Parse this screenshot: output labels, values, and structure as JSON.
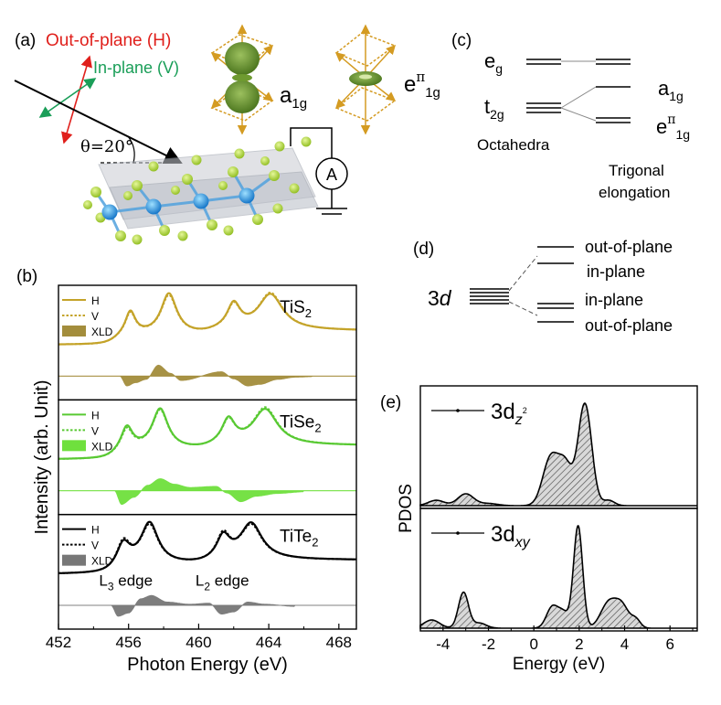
{
  "panel_labels": {
    "a": "(a)",
    "b": "(b)",
    "c": "(c)",
    "d": "(d)",
    "e": "(e)"
  },
  "panel_a": {
    "out_of_plane": "Out-of-plane (H)",
    "in_plane": "In-plane (V)",
    "theta": "θ=20°",
    "meter": "A",
    "orbital1_main": "a",
    "orbital1_sub": "1g",
    "orbital2_main": "e",
    "orbital2_sup": "π",
    "orbital2_sub": "1g",
    "colors": {
      "h": "#e0201c",
      "v": "#1a9e58",
      "orbital": "#5b7f2a",
      "axes": "#d49b22",
      "ligand": "#9fcc1f",
      "metal": "#1f8be0"
    }
  },
  "panel_c": {
    "eg_main": "e",
    "eg_sub": "g",
    "t2g_main": "t",
    "t2g_sub": "2g",
    "a1g_main": "a",
    "a1g_sub": "1g",
    "epi_main": "e",
    "epi_sup": "π",
    "epi_sub": "1g",
    "octahedra": "Octahedra",
    "trigonal_1": "Trigonal",
    "trigonal_2": "elongation"
  },
  "panel_d": {
    "level_main": "3",
    "level_italic": "d",
    "labels": [
      "out-of-plane",
      "in-plane",
      "in-plane",
      "out-of-plane"
    ]
  },
  "chart_data": [
    {
      "id": "xas",
      "type": "line",
      "xlabel": "Photon Energy (eV)",
      "ylabel": "Intensity (arb. Unit)",
      "xlim": [
        452,
        469
      ],
      "xticks": [
        452,
        456,
        460,
        464,
        468
      ],
      "edge_labels": [
        {
          "main": "L",
          "sub": "3",
          "rest": " edge",
          "x": 456.4
        },
        {
          "main": "L",
          "sub": "2",
          "rest": " edge",
          "x": 461.9
        }
      ],
      "panels": [
        {
          "name": "TiS",
          "sub": "2",
          "color": "#c4a329",
          "xld_color": "#a38d3c",
          "legend": [
            "H",
            "V",
            "XLD"
          ],
          "peaks": [
            {
              "x": 456.1,
              "h_amp": 0.55,
              "v_amp": 0.52,
              "w": 0.35
            },
            {
              "x": 458.3,
              "h_amp": 0.98,
              "v_amp": 0.94,
              "w": 0.55
            },
            {
              "x": 462.0,
              "h_amp": 0.58,
              "v_amp": 0.55,
              "w": 0.45
            },
            {
              "x": 464.1,
              "h_amp": 0.85,
              "v_amp": 0.88,
              "w": 0.85
            }
          ],
          "xld": [
            [
              455.5,
              0.0
            ],
            [
              455.9,
              -0.18
            ],
            [
              456.4,
              -0.12
            ],
            [
              457.0,
              -0.06
            ],
            [
              457.7,
              0.2
            ],
            [
              458.4,
              0.05
            ],
            [
              459.0,
              -0.08
            ],
            [
              461.3,
              0.08
            ],
            [
              462.0,
              -0.05
            ],
            [
              462.8,
              -0.18
            ],
            [
              463.5,
              -0.15
            ],
            [
              464.5,
              -0.06
            ],
            [
              465.5,
              -0.02
            ],
            [
              466.5,
              -0.01
            ]
          ]
        },
        {
          "name": "TiSe",
          "sub": "2",
          "color": "#58c932",
          "xld_color": "#6fe03d",
          "legend": [
            "H",
            "V",
            "XLD"
          ],
          "peaks": [
            {
              "x": 455.9,
              "h_amp": 0.55,
              "v_amp": 0.5,
              "w": 0.4
            },
            {
              "x": 457.8,
              "h_amp": 0.98,
              "v_amp": 0.95,
              "w": 0.55
            },
            {
              "x": 461.7,
              "h_amp": 0.58,
              "v_amp": 0.55,
              "w": 0.45
            },
            {
              "x": 463.8,
              "h_amp": 0.86,
              "v_amp": 0.9,
              "w": 0.85
            }
          ],
          "xld": [
            [
              455.2,
              0.0
            ],
            [
              455.6,
              -0.25
            ],
            [
              456.3,
              -0.12
            ],
            [
              457.1,
              0.1
            ],
            [
              457.8,
              0.22
            ],
            [
              458.6,
              0.12
            ],
            [
              459.5,
              0.06
            ],
            [
              461.0,
              0.08
            ],
            [
              461.6,
              -0.04
            ],
            [
              462.4,
              -0.2
            ],
            [
              463.3,
              -0.1
            ],
            [
              464.5,
              -0.05
            ],
            [
              466.0,
              -0.02
            ]
          ]
        },
        {
          "name": "TiTe",
          "sub": "2",
          "color": "#000000",
          "xld_color": "#777777",
          "legend": [
            "H",
            "V",
            "XLD"
          ],
          "peaks": [
            {
              "x": 455.7,
              "h_amp": 0.5,
              "v_amp": 0.55,
              "w": 0.45
            },
            {
              "x": 457.2,
              "h_amp": 0.98,
              "v_amp": 0.93,
              "w": 0.6
            },
            {
              "x": 461.4,
              "h_amp": 0.52,
              "v_amp": 0.57,
              "w": 0.45
            },
            {
              "x": 463.0,
              "h_amp": 0.86,
              "v_amp": 0.82,
              "w": 0.75
            }
          ],
          "xld": [
            [
              455.0,
              0.0
            ],
            [
              455.4,
              -0.2
            ],
            [
              456.0,
              -0.14
            ],
            [
              456.7,
              0.12
            ],
            [
              457.3,
              0.18
            ],
            [
              458.2,
              0.06
            ],
            [
              459.5,
              0.02
            ],
            [
              460.6,
              0.04
            ],
            [
              461.3,
              -0.16
            ],
            [
              462.0,
              -0.12
            ],
            [
              462.8,
              0.06
            ],
            [
              463.8,
              0.02
            ],
            [
              465.5,
              -0.02
            ]
          ]
        }
      ]
    },
    {
      "id": "pdos",
      "type": "area",
      "xlabel": "Energy (eV)",
      "ylabel": "PDOS",
      "xlim": [
        -5,
        7.2
      ],
      "xticks": [
        -4,
        -2,
        0,
        2,
        4,
        6
      ],
      "series": [
        {
          "name": "3d",
          "sub": "z",
          "subsup": "2",
          "peaks": [
            [
              -4.3,
              0.05,
              0.35
            ],
            [
              -3.0,
              0.11,
              0.35
            ],
            [
              -2.0,
              0.02,
              0.4
            ],
            [
              0.75,
              0.45,
              0.35
            ],
            [
              1.4,
              0.35,
              0.3
            ],
            [
              2.25,
              0.95,
              0.3
            ],
            [
              3.3,
              0.05,
              0.25
            ]
          ]
        },
        {
          "name": "3d",
          "sub": "xy",
          "subsup": "",
          "peaks": [
            [
              -4.5,
              0.08,
              0.35
            ],
            [
              -3.1,
              0.35,
              0.22
            ],
            [
              -2.4,
              0.05,
              0.3
            ],
            [
              0.8,
              0.2,
              0.25
            ],
            [
              1.3,
              0.15,
              0.25
            ],
            [
              1.95,
              1.0,
              0.2
            ],
            [
              3.3,
              0.25,
              0.35
            ],
            [
              3.9,
              0.2,
              0.3
            ],
            [
              4.5,
              0.08,
              0.2
            ]
          ]
        }
      ]
    }
  ]
}
